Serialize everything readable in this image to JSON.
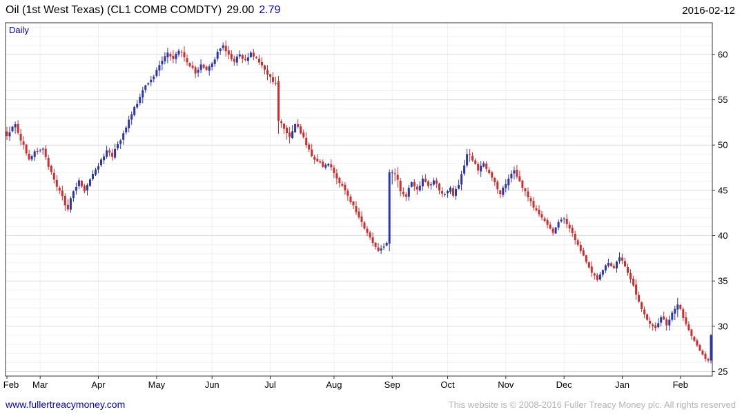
{
  "header": {
    "instrument": "Oil (1st West Texas) (CL1 COMB COMDTY)",
    "last_price": "29.00",
    "change": "2.79",
    "date": "2016-02-12"
  },
  "chart": {
    "frequency_label": "Daily"
  },
  "footer": {
    "site_link": "www.fullertreacymoney.com",
    "copyright": "This website is © 2008-2016 Fuller Treacy Money plc. All rights reserved"
  },
  "colors": {
    "candle_up": "#2b35ae",
    "candle_down": "#cf2c2c",
    "header_change": "#0000cc",
    "link": "#0000cc",
    "frequency": "#0000cc",
    "copyright": "#b3b3b3",
    "grid_major": "#dadada",
    "grid_minor": "#f0f0f0",
    "grid_vertical": "#efefef",
    "plot_border": "#333333",
    "axis_text": "#000000"
  },
  "chart_data": {
    "type": "candlestick",
    "title": "Oil (1st West Texas) (CL1 COMB COMDTY)",
    "frequency": "Daily",
    "date": "2016-02-12",
    "last_close": 29.0,
    "change": 2.79,
    "prev_close": 26.21,
    "ylim": [
      24.5,
      63.5
    ],
    "y_ticks": [
      25,
      30,
      35,
      40,
      45,
      50,
      55,
      60
    ],
    "num_days": 255,
    "x_ticks": [
      {
        "label": "Feb",
        "day": 0
      },
      {
        "label": "Mar",
        "day": 12
      },
      {
        "label": "Apr",
        "day": 33
      },
      {
        "label": "May",
        "day": 54
      },
      {
        "label": "Jun",
        "day": 74
      },
      {
        "label": "Jul",
        "day": 95
      },
      {
        "label": "Aug",
        "day": 118
      },
      {
        "label": "Sep",
        "day": 139
      },
      {
        "label": "Oct",
        "day": 159
      },
      {
        "label": "Nov",
        "day": 180
      },
      {
        "label": "Dec",
        "day": 201
      },
      {
        "label": "Jan",
        "day": 222
      },
      {
        "label": "Feb",
        "day": 243
      }
    ],
    "anchor_format": "[tradingDayIndex, close, typicalHalfRange] read off the chart; daily OHLC interpolated between anchors",
    "close_anchors": [
      [
        0,
        51.0,
        0.9
      ],
      [
        3,
        52.3,
        0.9
      ],
      [
        5,
        50.5,
        0.8
      ],
      [
        8,
        48.4,
        0.8
      ],
      [
        10,
        49.3,
        0.7
      ],
      [
        13,
        49.6,
        0.7
      ],
      [
        15,
        47.6,
        0.8
      ],
      [
        18,
        45.4,
        0.8
      ],
      [
        22,
        42.9,
        0.8
      ],
      [
        24,
        44.9,
        0.8
      ],
      [
        26,
        46.1,
        0.7
      ],
      [
        28,
        44.9,
        0.7
      ],
      [
        30,
        46.2,
        0.7
      ],
      [
        32,
        47.3,
        0.7
      ],
      [
        34,
        48.4,
        0.7
      ],
      [
        36,
        49.4,
        0.7
      ],
      [
        38,
        48.7,
        0.7
      ],
      [
        40,
        50.1,
        0.8
      ],
      [
        42,
        51.3,
        0.8
      ],
      [
        44,
        52.8,
        0.8
      ],
      [
        46,
        54.2,
        0.8
      ],
      [
        48,
        55.3,
        0.8
      ],
      [
        50,
        56.6,
        0.8
      ],
      [
        52,
        57.2,
        0.8
      ],
      [
        54,
        58.3,
        0.8
      ],
      [
        56,
        59.3,
        0.8
      ],
      [
        58,
        60.2,
        0.9
      ],
      [
        60,
        59.5,
        0.8
      ],
      [
        62,
        60.4,
        0.9
      ],
      [
        64,
        59.7,
        0.8
      ],
      [
        66,
        58.7,
        0.8
      ],
      [
        68,
        57.9,
        0.8
      ],
      [
        70,
        58.9,
        0.7
      ],
      [
        72,
        58.3,
        0.7
      ],
      [
        74,
        59.0,
        0.7
      ],
      [
        76,
        60.3,
        0.8
      ],
      [
        78,
        61.0,
        0.8
      ],
      [
        80,
        60.0,
        0.7
      ],
      [
        82,
        59.2,
        0.7
      ],
      [
        84,
        60.0,
        0.7
      ],
      [
        86,
        59.4,
        0.7
      ],
      [
        88,
        60.2,
        0.7
      ],
      [
        90,
        59.6,
        0.7
      ],
      [
        92,
        58.8,
        0.7
      ],
      [
        94,
        57.8,
        0.8
      ],
      [
        97,
        56.8,
        1.0
      ],
      [
        98,
        52.7,
        2.0
      ],
      [
        100,
        51.8,
        0.9
      ],
      [
        102,
        50.9,
        0.9
      ],
      [
        104,
        52.3,
        0.9
      ],
      [
        106,
        51.3,
        0.8
      ],
      [
        108,
        50.0,
        0.8
      ],
      [
        110,
        48.8,
        0.8
      ],
      [
        112,
        48.2,
        0.7
      ],
      [
        114,
        47.6,
        0.7
      ],
      [
        116,
        47.9,
        0.7
      ],
      [
        118,
        46.9,
        0.8
      ],
      [
        120,
        45.8,
        0.8
      ],
      [
        122,
        45.0,
        0.7
      ],
      [
        124,
        43.7,
        0.7
      ],
      [
        126,
        42.6,
        0.7
      ],
      [
        128,
        41.5,
        0.7
      ],
      [
        130,
        40.3,
        0.7
      ],
      [
        132,
        39.2,
        0.7
      ],
      [
        134,
        38.3,
        0.8
      ],
      [
        136,
        38.8,
        0.9
      ],
      [
        137,
        39.2,
        0.9
      ],
      [
        138,
        47.0,
        2.4
      ],
      [
        140,
        46.8,
        1.4
      ],
      [
        142,
        44.9,
        1.0
      ],
      [
        144,
        44.3,
        0.9
      ],
      [
        146,
        45.9,
        0.8
      ],
      [
        148,
        45.1,
        0.8
      ],
      [
        150,
        46.3,
        0.7
      ],
      [
        152,
        45.5,
        0.7
      ],
      [
        154,
        46.1,
        0.7
      ],
      [
        156,
        45.0,
        0.7
      ],
      [
        158,
        44.6,
        0.7
      ],
      [
        160,
        45.3,
        0.7
      ],
      [
        161,
        44.4,
        0.7
      ],
      [
        163,
        45.6,
        0.8
      ],
      [
        166,
        49.0,
        1.1
      ],
      [
        168,
        48.3,
        0.9
      ],
      [
        170,
        47.2,
        0.8
      ],
      [
        172,
        48.0,
        0.8
      ],
      [
        174,
        46.9,
        0.8
      ],
      [
        176,
        45.9,
        0.7
      ],
      [
        178,
        44.6,
        0.8
      ],
      [
        181,
        46.3,
        0.8
      ],
      [
        183,
        47.2,
        0.8
      ],
      [
        185,
        46.0,
        0.8
      ],
      [
        187,
        44.9,
        0.7
      ],
      [
        189,
        43.8,
        0.7
      ],
      [
        191,
        42.8,
        0.7
      ],
      [
        193,
        42.0,
        0.7
      ],
      [
        195,
        41.2,
        0.7
      ],
      [
        197,
        40.3,
        0.6
      ],
      [
        199,
        41.5,
        0.7
      ],
      [
        201,
        41.9,
        0.7
      ],
      [
        203,
        40.8,
        0.7
      ],
      [
        205,
        39.5,
        0.7
      ],
      [
        207,
        38.3,
        0.6
      ],
      [
        209,
        37.1,
        0.6
      ],
      [
        211,
        35.9,
        0.7
      ],
      [
        213,
        35.1,
        0.6
      ],
      [
        215,
        36.2,
        0.6
      ],
      [
        217,
        37.0,
        0.6
      ],
      [
        219,
        36.4,
        0.6
      ],
      [
        221,
        37.6,
        0.7
      ],
      [
        223,
        36.6,
        0.7
      ],
      [
        225,
        35.2,
        0.8
      ],
      [
        227,
        33.5,
        0.8
      ],
      [
        229,
        31.9,
        0.8
      ],
      [
        231,
        30.7,
        0.8
      ],
      [
        233,
        30.0,
        0.7
      ],
      [
        234,
        29.8,
        0.7
      ],
      [
        236,
        31.0,
        0.8
      ],
      [
        238,
        30.1,
        0.8
      ],
      [
        240,
        31.5,
        0.8
      ],
      [
        242,
        32.4,
        1.1
      ],
      [
        244,
        30.9,
        0.8
      ],
      [
        246,
        29.6,
        0.7
      ],
      [
        248,
        28.4,
        0.6
      ],
      [
        250,
        27.3,
        0.6
      ],
      [
        252,
        26.4,
        0.5
      ],
      [
        253,
        26.21,
        0.4
      ],
      [
        254,
        29.0,
        0.5
      ]
    ]
  }
}
